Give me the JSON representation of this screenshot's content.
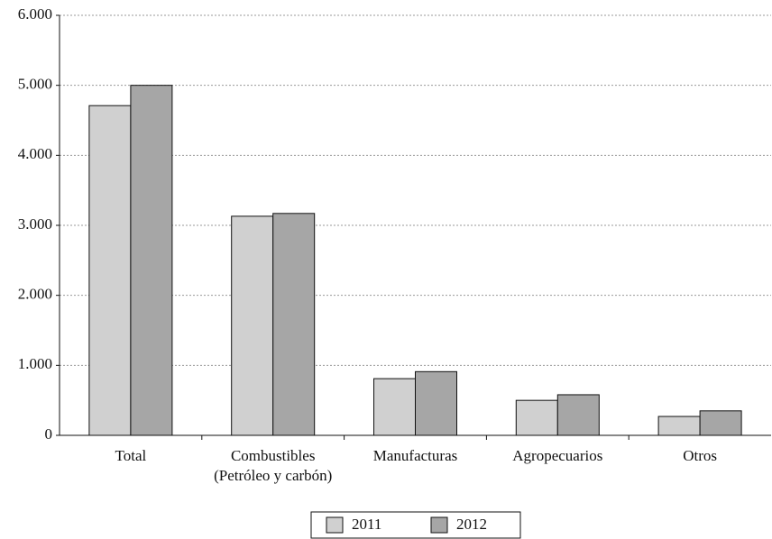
{
  "chart_data": {
    "type": "bar",
    "categories": [
      "Total",
      "Combustibles\n(Petróleo y carbón)",
      "Manufacturas",
      "Agropecuarios",
      "Otros"
    ],
    "series": [
      {
        "name": "2011",
        "color": "#d0d0d0",
        "values": [
          4710,
          3130,
          810,
          500,
          270
        ]
      },
      {
        "name": "2012",
        "color": "#a6a6a6",
        "values": [
          5000,
          3170,
          910,
          580,
          350
        ]
      }
    ],
    "ylim": [
      0,
      6000
    ],
    "yticks": [
      0,
      {
        "value": 1000,
        "label": "1.000"
      },
      {
        "value": 2000,
        "label": "2.000"
      },
      {
        "value": 3000,
        "label": "3.000"
      },
      {
        "value": 4000,
        "label": "4.000"
      },
      {
        "value": 5000,
        "label": "5.000"
      },
      {
        "value": 6000,
        "label": "6.000"
      }
    ],
    "grid": true,
    "legend": "bottom"
  }
}
